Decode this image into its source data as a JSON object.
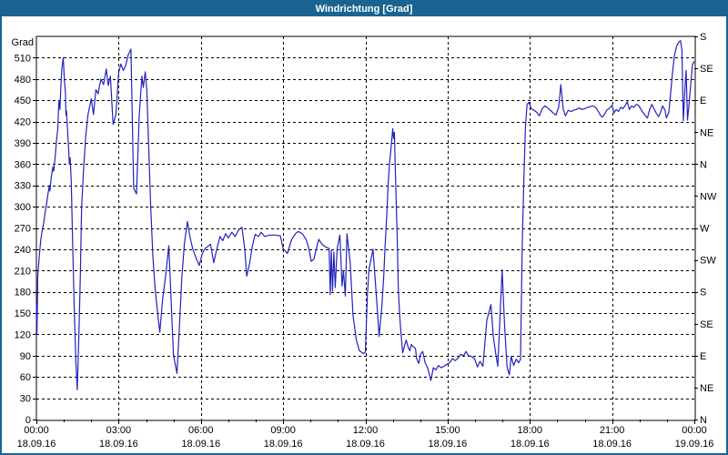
{
  "window": {
    "title": "Windrichtung [Grad]"
  },
  "colors": {
    "titlebar_bg": "#1b6492",
    "titlebar_text": "#ffffff",
    "frame_border": "#1b6492",
    "plot_frame": "#000000",
    "grid": "#000000",
    "line": "#2222be",
    "background": "#ffffff"
  },
  "chart_data": {
    "type": "line",
    "title": "Windrichtung [Grad]",
    "ylabel": "Grad",
    "ylim": [
      0,
      540
    ],
    "xlim_hours": [
      0,
      24
    ],
    "grid": "dashed",
    "legend": "none",
    "y_left_ticks": [
      0,
      30,
      60,
      90,
      120,
      150,
      180,
      210,
      240,
      270,
      300,
      330,
      360,
      390,
      420,
      450,
      480,
      510
    ],
    "y_right_ticks": [
      {
        "deg": 540,
        "label": "S"
      },
      {
        "deg": 495,
        "label": "SE"
      },
      {
        "deg": 450,
        "label": "E"
      },
      {
        "deg": 405,
        "label": "NE"
      },
      {
        "deg": 360,
        "label": "N"
      },
      {
        "deg": 315,
        "label": "NW"
      },
      {
        "deg": 270,
        "label": "W"
      },
      {
        "deg": 225,
        "label": "SW"
      },
      {
        "deg": 180,
        "label": "S"
      },
      {
        "deg": 135,
        "label": "SE"
      },
      {
        "deg": 90,
        "label": "E"
      },
      {
        "deg": 45,
        "label": "NE"
      },
      {
        "deg": 0,
        "label": "N"
      }
    ],
    "x_ticks": [
      {
        "hour": 0,
        "time": "00:00",
        "date": "18.09.16"
      },
      {
        "hour": 3,
        "time": "03:00",
        "date": "18.09.16"
      },
      {
        "hour": 6,
        "time": "06:00",
        "date": "18.09.16"
      },
      {
        "hour": 9,
        "time": "09:00",
        "date": "18.09.16"
      },
      {
        "hour": 12,
        "time": "12:00",
        "date": "18.09.16"
      },
      {
        "hour": 15,
        "time": "15:00",
        "date": "18.09.16"
      },
      {
        "hour": 18,
        "time": "18:00",
        "date": "18.09.16"
      },
      {
        "hour": 21,
        "time": "21:00",
        "date": "18.09.16"
      },
      {
        "hour": 24,
        "time": "00:00",
        "date": "19.09.16"
      }
    ],
    "minor_x_tick_every_hours": 1,
    "series": [
      {
        "name": "Windrichtung",
        "color": "#2222be",
        "points": [
          [
            0.0,
            165
          ],
          [
            0.02,
            120
          ],
          [
            0.04,
            168
          ],
          [
            0.05,
            202
          ],
          [
            0.1,
            228
          ],
          [
            0.16,
            253
          ],
          [
            0.21,
            266
          ],
          [
            0.27,
            278
          ],
          [
            0.32,
            292
          ],
          [
            0.38,
            306
          ],
          [
            0.43,
            320
          ],
          [
            0.47,
            330
          ],
          [
            0.49,
            322
          ],
          [
            0.54,
            341
          ],
          [
            0.6,
            356
          ],
          [
            0.63,
            350
          ],
          [
            0.69,
            373
          ],
          [
            0.73,
            392
          ],
          [
            0.78,
            410
          ],
          [
            0.82,
            450
          ],
          [
            0.86,
            437
          ],
          [
            0.9,
            476
          ],
          [
            0.93,
            495
          ],
          [
            0.98,
            510
          ],
          [
            1.02,
            480
          ],
          [
            1.06,
            461
          ],
          [
            1.08,
            429
          ],
          [
            1.1,
            435
          ],
          [
            1.15,
            399
          ],
          [
            1.18,
            380
          ],
          [
            1.2,
            360
          ],
          [
            1.23,
            369
          ],
          [
            1.27,
            335
          ],
          [
            1.32,
            250
          ],
          [
            1.38,
            155
          ],
          [
            1.44,
            80
          ],
          [
            1.49,
            42
          ],
          [
            1.55,
            120
          ],
          [
            1.6,
            198
          ],
          [
            1.65,
            300
          ],
          [
            1.72,
            352
          ],
          [
            1.8,
            399
          ],
          [
            1.88,
            429
          ],
          [
            2.0,
            452
          ],
          [
            2.08,
            430
          ],
          [
            2.17,
            465
          ],
          [
            2.25,
            459
          ],
          [
            2.35,
            480
          ],
          [
            2.45,
            472
          ],
          [
            2.55,
            494
          ],
          [
            2.62,
            471
          ],
          [
            2.7,
            484
          ],
          [
            2.8,
            416
          ],
          [
            2.9,
            430
          ],
          [
            3.0,
            489
          ],
          [
            3.08,
            501
          ],
          [
            3.17,
            492
          ],
          [
            3.25,
            498
          ],
          [
            3.35,
            514
          ],
          [
            3.45,
            522
          ],
          [
            3.55,
            326
          ],
          [
            3.65,
            318
          ],
          [
            3.75,
            429
          ],
          [
            3.85,
            484
          ],
          [
            3.9,
            468
          ],
          [
            3.97,
            490
          ],
          [
            4.03,
            463
          ],
          [
            4.1,
            380
          ],
          [
            4.17,
            300
          ],
          [
            4.25,
            230
          ],
          [
            4.33,
            185
          ],
          [
            4.42,
            150
          ],
          [
            4.5,
            123
          ],
          [
            4.6,
            168
          ],
          [
            4.72,
            205
          ],
          [
            4.83,
            245
          ],
          [
            4.92,
            164
          ],
          [
            5.0,
            91
          ],
          [
            5.13,
            65
          ],
          [
            5.22,
            134
          ],
          [
            5.3,
            198
          ],
          [
            5.4,
            249
          ],
          [
            5.51,
            279
          ],
          [
            5.6,
            258
          ],
          [
            5.7,
            241
          ],
          [
            5.82,
            228
          ],
          [
            5.94,
            217
          ],
          [
            6.05,
            234
          ],
          [
            6.15,
            241
          ],
          [
            6.25,
            244
          ],
          [
            6.35,
            247
          ],
          [
            6.47,
            221
          ],
          [
            6.58,
            240
          ],
          [
            6.7,
            258
          ],
          [
            6.8,
            252
          ],
          [
            6.9,
            262
          ],
          [
            7.0,
            256
          ],
          [
            7.13,
            264
          ],
          [
            7.25,
            258
          ],
          [
            7.37,
            267
          ],
          [
            7.5,
            271
          ],
          [
            7.6,
            240
          ],
          [
            7.67,
            202
          ],
          [
            7.78,
            221
          ],
          [
            7.88,
            245
          ],
          [
            7.98,
            261
          ],
          [
            8.1,
            258
          ],
          [
            8.2,
            264
          ],
          [
            8.33,
            258
          ],
          [
            8.5,
            260
          ],
          [
            8.7,
            260
          ],
          [
            8.9,
            259
          ],
          [
            9.0,
            241
          ],
          [
            9.16,
            234
          ],
          [
            9.3,
            253
          ],
          [
            9.45,
            262
          ],
          [
            9.55,
            265
          ],
          [
            9.7,
            262
          ],
          [
            9.85,
            253
          ],
          [
            9.95,
            240
          ],
          [
            10.02,
            223
          ],
          [
            10.12,
            226
          ],
          [
            10.22,
            242
          ],
          [
            10.3,
            254
          ],
          [
            10.42,
            247
          ],
          [
            10.52,
            244
          ],
          [
            10.62,
            242
          ],
          [
            10.68,
            241
          ],
          [
            10.72,
            176
          ],
          [
            10.76,
            238
          ],
          [
            10.8,
            181
          ],
          [
            10.85,
            236
          ],
          [
            10.9,
            186
          ],
          [
            10.97,
            241
          ],
          [
            11.07,
            260
          ],
          [
            11.15,
            188
          ],
          [
            11.2,
            210
          ],
          [
            11.27,
            174
          ],
          [
            11.33,
            262
          ],
          [
            11.45,
            220
          ],
          [
            11.55,
            147
          ],
          [
            11.67,
            112
          ],
          [
            11.78,
            97
          ],
          [
            11.93,
            93
          ],
          [
            12.0,
            95
          ],
          [
            12.07,
            172
          ],
          [
            12.13,
            211
          ],
          [
            12.28,
            240
          ],
          [
            12.4,
            174
          ],
          [
            12.5,
            117
          ],
          [
            12.6,
            159
          ],
          [
            12.67,
            202
          ],
          [
            12.72,
            245
          ],
          [
            12.78,
            288
          ],
          [
            12.83,
            330
          ],
          [
            12.88,
            360
          ],
          [
            12.94,
            384
          ],
          [
            13.0,
            410
          ],
          [
            13.03,
            396
          ],
          [
            13.06,
            405
          ],
          [
            13.1,
            343
          ],
          [
            13.13,
            301
          ],
          [
            13.16,
            262
          ],
          [
            13.2,
            185
          ],
          [
            13.25,
            147
          ],
          [
            13.3,
            121
          ],
          [
            13.36,
            94
          ],
          [
            13.43,
            104
          ],
          [
            13.49,
            112
          ],
          [
            13.56,
            102
          ],
          [
            13.62,
            97
          ],
          [
            13.68,
            106
          ],
          [
            13.73,
            103
          ],
          [
            13.83,
            100
          ],
          [
            13.87,
            86
          ],
          [
            13.95,
            79
          ],
          [
            14.01,
            92
          ],
          [
            14.09,
            96
          ],
          [
            14.18,
            80
          ],
          [
            14.27,
            73
          ],
          [
            14.39,
            55
          ],
          [
            14.48,
            73
          ],
          [
            14.57,
            70
          ],
          [
            14.67,
            76
          ],
          [
            14.76,
            73
          ],
          [
            14.87,
            75
          ],
          [
            14.98,
            78
          ],
          [
            15.07,
            80
          ],
          [
            15.18,
            86
          ],
          [
            15.27,
            83
          ],
          [
            15.37,
            86
          ],
          [
            15.48,
            92
          ],
          [
            15.59,
            90
          ],
          [
            15.67,
            96
          ],
          [
            15.76,
            90
          ],
          [
            15.87,
            89
          ],
          [
            15.98,
            86
          ],
          [
            16.09,
            74
          ],
          [
            16.18,
            82
          ],
          [
            16.29,
            75
          ],
          [
            16.43,
            140
          ],
          [
            16.58,
            162
          ],
          [
            16.67,
            116
          ],
          [
            16.74,
            97
          ],
          [
            16.83,
            75
          ],
          [
            16.99,
            211
          ],
          [
            17.08,
            132
          ],
          [
            17.17,
            74
          ],
          [
            17.25,
            63
          ],
          [
            17.32,
            89
          ],
          [
            17.41,
            76
          ],
          [
            17.5,
            85
          ],
          [
            17.59,
            80
          ],
          [
            17.66,
            85
          ],
          [
            17.72,
            240
          ],
          [
            17.78,
            335
          ],
          [
            17.84,
            412
          ],
          [
            17.9,
            444
          ],
          [
            17.97,
            447
          ],
          [
            18.05,
            438
          ],
          [
            18.15,
            436
          ],
          [
            18.25,
            433
          ],
          [
            18.35,
            428
          ],
          [
            18.45,
            438
          ],
          [
            18.55,
            442
          ],
          [
            18.65,
            439
          ],
          [
            18.75,
            436
          ],
          [
            18.85,
            432
          ],
          [
            18.95,
            429
          ],
          [
            19.05,
            440
          ],
          [
            19.13,
            472
          ],
          [
            19.22,
            437
          ],
          [
            19.3,
            428
          ],
          [
            19.4,
            436
          ],
          [
            19.5,
            434
          ],
          [
            19.6,
            436
          ],
          [
            19.7,
            437
          ],
          [
            19.8,
            439
          ],
          [
            19.9,
            437
          ],
          [
            20.0,
            438
          ],
          [
            20.1,
            440
          ],
          [
            20.2,
            441
          ],
          [
            20.3,
            442
          ],
          [
            20.4,
            440
          ],
          [
            20.5,
            434
          ],
          [
            20.57,
            429
          ],
          [
            20.64,
            426
          ],
          [
            20.72,
            430
          ],
          [
            20.8,
            436
          ],
          [
            20.88,
            438
          ],
          [
            20.96,
            441
          ],
          [
            21.0,
            443
          ],
          [
            21.07,
            432
          ],
          [
            21.15,
            437
          ],
          [
            21.23,
            434
          ],
          [
            21.31,
            440
          ],
          [
            21.39,
            438
          ],
          [
            21.47,
            442
          ],
          [
            21.55,
            448
          ],
          [
            21.63,
            437
          ],
          [
            21.71,
            442
          ],
          [
            21.79,
            440
          ],
          [
            21.88,
            444
          ],
          [
            21.96,
            443
          ],
          [
            22.04,
            438
          ],
          [
            22.12,
            433
          ],
          [
            22.2,
            429
          ],
          [
            22.29,
            425
          ],
          [
            22.37,
            437
          ],
          [
            22.45,
            444
          ],
          [
            22.53,
            438
          ],
          [
            22.61,
            432
          ],
          [
            22.7,
            427
          ],
          [
            22.78,
            434
          ],
          [
            22.84,
            442
          ],
          [
            22.93,
            436
          ],
          [
            22.98,
            425
          ],
          [
            23.07,
            433
          ],
          [
            23.14,
            462
          ],
          [
            23.2,
            487
          ],
          [
            23.27,
            512
          ],
          [
            23.35,
            526
          ],
          [
            23.44,
            532
          ],
          [
            23.5,
            534
          ],
          [
            23.55,
            520
          ],
          [
            23.6,
            421
          ],
          [
            23.67,
            476
          ],
          [
            23.7,
            492
          ],
          [
            23.75,
            422
          ],
          [
            23.82,
            450
          ],
          [
            23.88,
            478
          ],
          [
            23.93,
            500
          ],
          [
            24.0,
            505
          ]
        ]
      }
    ]
  }
}
